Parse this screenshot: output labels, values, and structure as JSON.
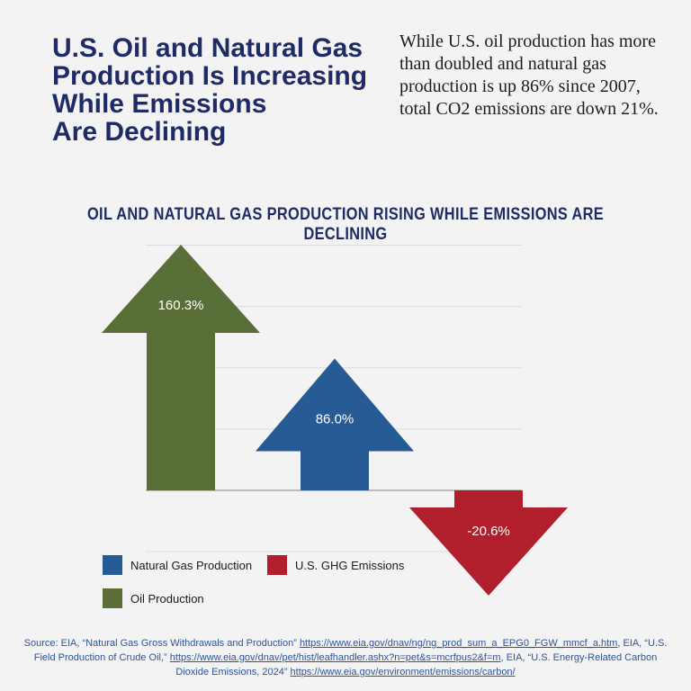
{
  "headline": "U.S. Oil and Natural Gas\nProduction Is Increasing\nWhile Emissions\nAre Declining",
  "summary": "While U.S. oil production has more than doubled and natural gas production is up 86% since 2007, total CO2 emissions are down 21%.",
  "colors": {
    "oil": "#5a6e37",
    "gas": "#275b96",
    "emissions": "#b21f2c",
    "title": "#1f2b66",
    "source": "#2f5596"
  },
  "chart_data": {
    "type": "bar",
    "title": "OIL AND NATURAL GAS PRODUCTION RISING WHILE EMISSIONS ARE DECLINING",
    "categories": [
      "Oil Production",
      "Natural Gas Production",
      "U.S. GHG Emissions"
    ],
    "values": [
      160.3,
      86.0,
      -20.6
    ],
    "value_labels": [
      "160.3%",
      "86.0%",
      "-20.6%"
    ],
    "unit": "%",
    "ylim": [
      -40,
      160
    ],
    "grid": true,
    "xlabel": "",
    "ylabel": "",
    "legend": [
      {
        "label": "Natural Gas Production",
        "color": "#275b96"
      },
      {
        "label": "U.S. GHG Emissions",
        "color": "#b21f2c"
      },
      {
        "label": "Oil Production",
        "color": "#5a6e37"
      }
    ]
  },
  "source": {
    "prefix": "Source: EIA, “Natural Gas Gross Withdrawals and Production” ",
    "link1": "https://www.eia.gov/dnav/ng/ng_prod_sum_a_EPG0_FGW_mmcf_a.htm",
    "mid1": ", EIA, “U.S. Field Production of Crude Oil,” ",
    "link2": "https://www.eia.gov/dnav/pet/hist/leafhandler.ashx?n=pet&s=mcrfpus2&f=m",
    "mid2": ", EIA, “U.S. Energy-Related Carbon Dioxide Emissions, 2024”  ",
    "link3": "https://www.eia.gov/environment/emissions/carbon/"
  }
}
